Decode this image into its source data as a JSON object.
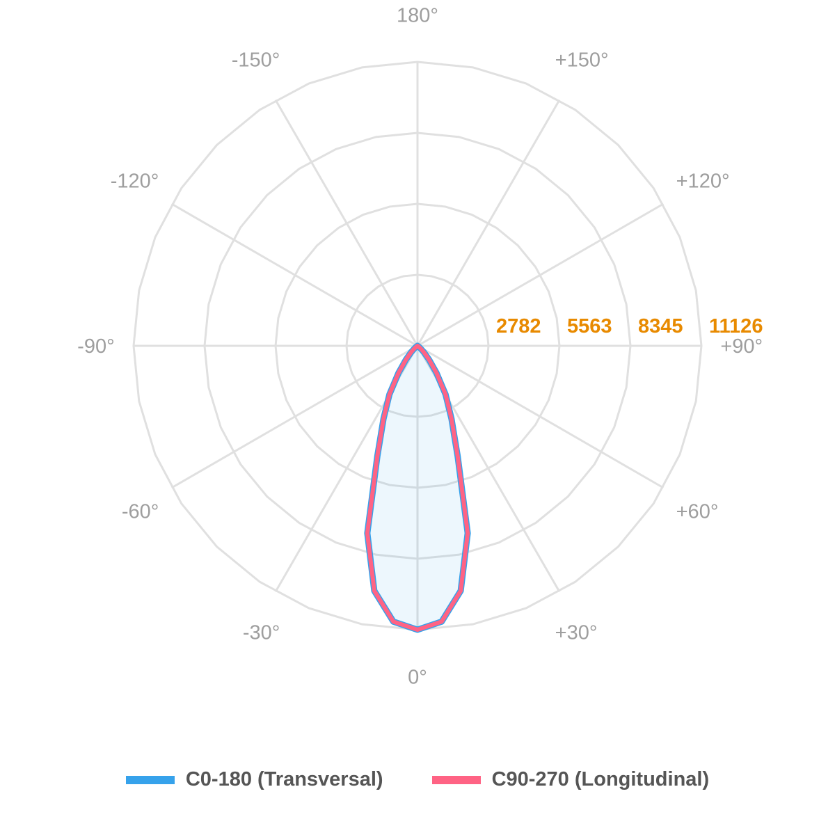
{
  "chart_data": {
    "type": "polar-line",
    "zero_direction": "bottom",
    "angle_unit": "degrees",
    "angle_tick_labels": [
      {
        "angle": 0,
        "label": "0°"
      },
      {
        "angle": 30,
        "label": "+30°"
      },
      {
        "angle": 60,
        "label": "+60°"
      },
      {
        "angle": 90,
        "label": "+90°"
      },
      {
        "angle": 120,
        "label": "+120°"
      },
      {
        "angle": 150,
        "label": "+150°"
      },
      {
        "angle": 180,
        "label": "180°"
      },
      {
        "angle": -150,
        "label": "-150°"
      },
      {
        "angle": -120,
        "label": "-120°"
      },
      {
        "angle": -90,
        "label": "-90°"
      },
      {
        "angle": -60,
        "label": "-60°"
      },
      {
        "angle": -30,
        "label": "-30°"
      }
    ],
    "radial_ticks": [
      2782,
      5563,
      8345,
      11126
    ],
    "radial_tick_labels": [
      "2782",
      "5563",
      "8345",
      "11126"
    ],
    "rlim": [
      0,
      11126
    ],
    "grid": true,
    "legend_position": "bottom",
    "angles": [
      -90,
      -85,
      -80,
      -75,
      -70,
      -65,
      -60,
      -55,
      -50,
      -45,
      -40,
      -35,
      -30,
      -25,
      -20,
      -15,
      -10,
      -5,
      0,
      5,
      10,
      15,
      20,
      25,
      30,
      35,
      40,
      45,
      50,
      55,
      60,
      65,
      70,
      75,
      80,
      85,
      90
    ],
    "series": [
      {
        "name": "C0-180 (Transversal)",
        "color": "#36a2eb",
        "values": [
          0,
          0,
          0,
          0,
          0,
          0,
          0,
          50,
          150,
          350,
          700,
          1300,
          2200,
          3150,
          4600,
          7600,
          9750,
          10850,
          11126,
          10850,
          9750,
          7600,
          4600,
          3150,
          2200,
          1300,
          700,
          350,
          150,
          50,
          0,
          0,
          0,
          0,
          0,
          0,
          0
        ]
      },
      {
        "name": "C90-270 (Longitudinal)",
        "color": "#ff6384",
        "values": [
          0,
          0,
          0,
          0,
          0,
          0,
          0,
          50,
          150,
          350,
          700,
          1300,
          2200,
          3150,
          4600,
          7600,
          9750,
          10850,
          11126,
          10850,
          9750,
          7600,
          4600,
          3150,
          2200,
          1300,
          700,
          350,
          150,
          50,
          0,
          0,
          0,
          0,
          0,
          0,
          0
        ]
      }
    ],
    "colors": {
      "grid": "#e0e0e0",
      "angle_labels": "#9e9e9e",
      "radial_labels": "#e88a00",
      "legend_text": "#555555"
    }
  }
}
